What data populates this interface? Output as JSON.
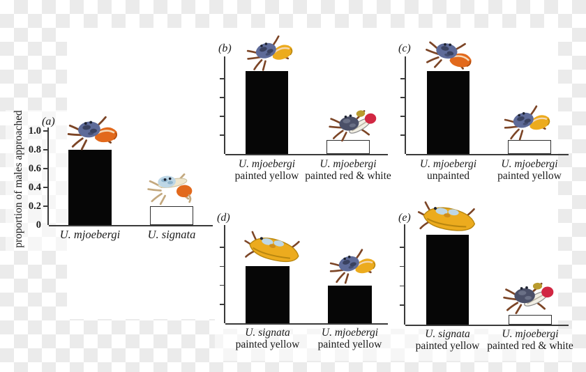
{
  "figure": {
    "y_axis_label": "proportion of males approached",
    "y_tick_labels": [
      "1.0",
      "0.8",
      "0.6",
      "0.4",
      "0.2",
      "0"
    ],
    "panels": [
      {
        "id": "a",
        "letter": "(a)",
        "bars": [
          {
            "species": "U. mjoebergi",
            "treatment": "",
            "value": 0.8,
            "fill": "black",
            "crab": "mjoebergi-unpainted"
          },
          {
            "species": "U. signata",
            "treatment": "",
            "value": 0.2,
            "fill": "white",
            "crab": "signata-unpainted"
          }
        ]
      },
      {
        "id": "b",
        "letter": "(b)",
        "bars": [
          {
            "species": "U. mjoebergi",
            "treatment": "painted yellow",
            "value": 0.88,
            "fill": "black",
            "crab": "mjoebergi-painted-yellow"
          },
          {
            "species": "U. mjoebergi",
            "treatment": "painted red & white",
            "value": 0.15,
            "fill": "white",
            "crab": "mjoebergi-painted-red-white"
          }
        ]
      },
      {
        "id": "c",
        "letter": "(c)",
        "bars": [
          {
            "species": "U. mjoebergi",
            "treatment": "unpainted",
            "value": 0.88,
            "fill": "black",
            "crab": "mjoebergi-unpainted"
          },
          {
            "species": "U. mjoebergi",
            "treatment": "painted yellow",
            "value": 0.15,
            "fill": "white",
            "crab": "mjoebergi-painted-yellow"
          }
        ]
      },
      {
        "id": "d",
        "letter": "(d)",
        "bars": [
          {
            "species": "U. signata",
            "treatment": "painted yellow",
            "value": 0.6,
            "fill": "black",
            "crab": "signata-painted-yellow"
          },
          {
            "species": "U. mjoebergi",
            "treatment": "painted yellow",
            "value": 0.4,
            "fill": "black",
            "crab": "mjoebergi-painted-yellow"
          }
        ]
      },
      {
        "id": "e",
        "letter": "(e)",
        "bars": [
          {
            "species": "U. signata",
            "treatment": "painted yellow",
            "value": 0.93,
            "fill": "black",
            "crab": "signata-painted-yellow"
          },
          {
            "species": "U. mjoebergi",
            "treatment": "painted red & white",
            "value": 0.1,
            "fill": "white",
            "crab": "mjoebergi-painted-red-white"
          }
        ]
      }
    ]
  },
  "chart_data": [
    {
      "panel": "a",
      "type": "bar",
      "categories": [
        "U. mjoebergi",
        "U. signata"
      ],
      "values": [
        0.8,
        0.2
      ],
      "bar_colors": [
        "black",
        "white"
      ],
      "title": "",
      "xlabel": "",
      "ylabel": "proportion of males approached",
      "ylim": [
        0,
        1.0
      ],
      "yticks": [
        0,
        0.2,
        0.4,
        0.6,
        0.8,
        1.0
      ],
      "yticks_labeled": true,
      "grid": false
    },
    {
      "panel": "b",
      "type": "bar",
      "categories": [
        "U. mjoebergi painted yellow",
        "U. mjoebergi painted red & white"
      ],
      "values": [
        0.88,
        0.15
      ],
      "bar_colors": [
        "black",
        "white"
      ],
      "title": "",
      "xlabel": "",
      "ylabel": "",
      "ylim": [
        0,
        1.0
      ],
      "yticks": [
        0.2,
        0.4,
        0.6,
        0.8
      ],
      "yticks_labeled": false,
      "grid": false
    },
    {
      "panel": "c",
      "type": "bar",
      "categories": [
        "U. mjoebergi unpainted",
        "U. mjoebergi painted yellow"
      ],
      "values": [
        0.88,
        0.15
      ],
      "bar_colors": [
        "black",
        "white"
      ],
      "title": "",
      "xlabel": "",
      "ylabel": "",
      "ylim": [
        0,
        1.0
      ],
      "yticks": [
        0.2,
        0.4,
        0.6,
        0.8
      ],
      "yticks_labeled": false,
      "grid": false
    },
    {
      "panel": "d",
      "type": "bar",
      "categories": [
        "U. signata painted yellow",
        "U. mjoebergi painted yellow"
      ],
      "values": [
        0.6,
        0.4
      ],
      "bar_colors": [
        "black",
        "black"
      ],
      "title": "",
      "xlabel": "",
      "ylabel": "",
      "ylim": [
        0,
        1.0
      ],
      "yticks": [
        0.2,
        0.4,
        0.6,
        0.8
      ],
      "yticks_labeled": false,
      "grid": false
    },
    {
      "panel": "e",
      "type": "bar",
      "categories": [
        "U. signata painted yellow",
        "U. mjoebergi painted red & white"
      ],
      "values": [
        0.93,
        0.1
      ],
      "bar_colors": [
        "black",
        "white"
      ],
      "title": "",
      "xlabel": "",
      "ylabel": "",
      "ylim": [
        0,
        1.0
      ],
      "yticks": [
        0.2,
        0.4,
        0.6,
        0.8
      ],
      "yticks_labeled": false,
      "grid": false
    }
  ],
  "colors": {
    "bar_black": "#060606",
    "bar_white": "#ffffff",
    "axis": "#3a3a3a",
    "text": "#1b1b1b",
    "checker_light": "#ffffff",
    "checker_gray": "#ebebeb",
    "crab": {
      "body_blue": "#5e6b99",
      "body_blue_dark": "#39415f",
      "body_dark": "#4b5068",
      "body_dark_light": "#6a7086",
      "body_pale": "#bed7e6",
      "body_pale_dark": "#8fb4cc",
      "claw_orange": "#e2691c",
      "claw_orange_dark": "#b24c0e",
      "claw_yellow": "#ecab1e",
      "yellow_dark": "#b8860f",
      "claw_red": "#d12742",
      "claw_white": "#f2efe4",
      "claw_light": "#f4d9b8",
      "claw_cream": "#efe6cd",
      "legs": "#7c4526",
      "legs_tan": "#c3a87e",
      "paint_olive": "#b99b2e",
      "eye": "#1d2230"
    }
  }
}
